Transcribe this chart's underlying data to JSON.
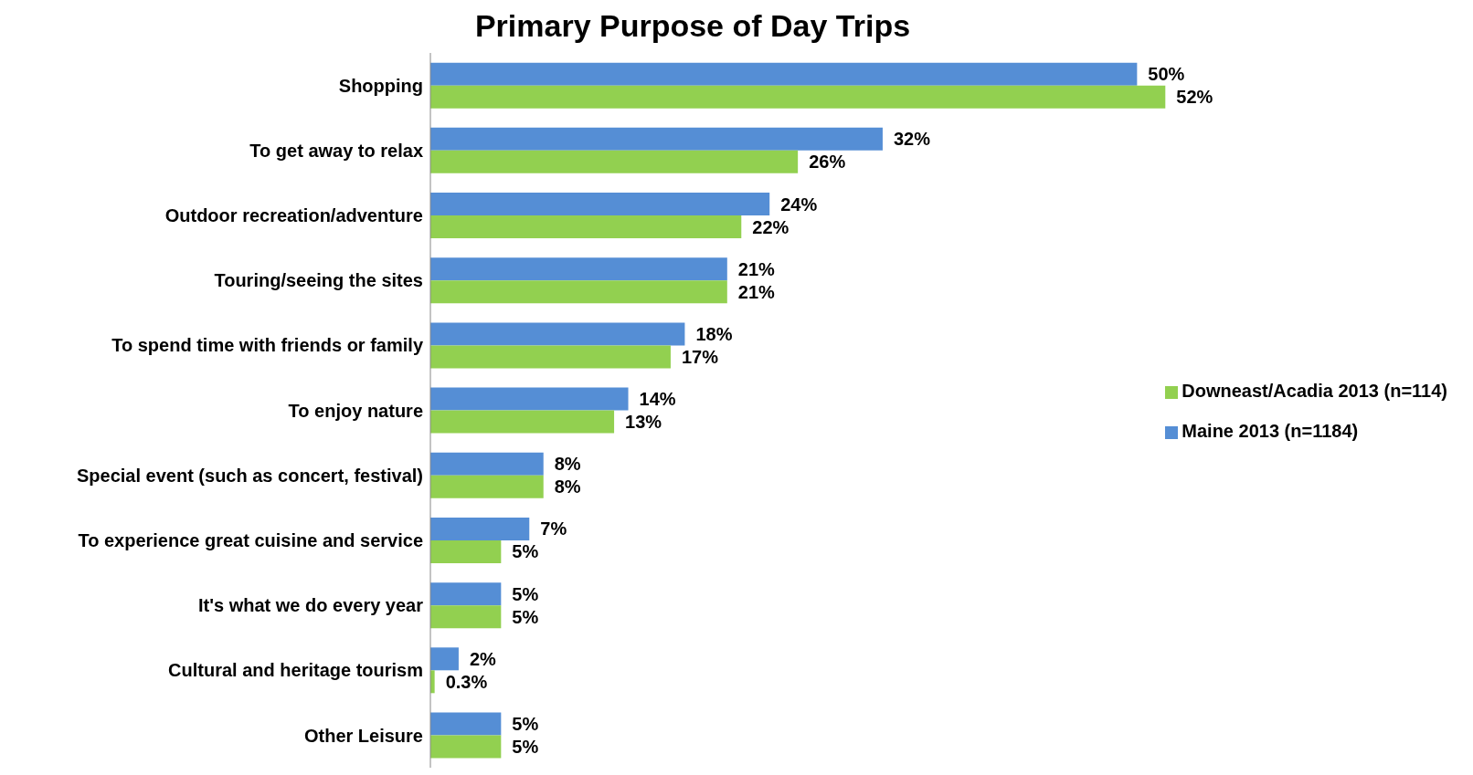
{
  "chart_data": {
    "type": "bar",
    "orientation": "horizontal",
    "title": "Primary Purpose of Day Trips",
    "categories": [
      "Shopping",
      "To get away to relax",
      "Outdoor recreation/adventure",
      "Touring/seeing the sites",
      "To spend time with friends or family",
      "To enjoy nature",
      "Special event (such as concert, festival)",
      "To experience great cuisine and service",
      "It's what we do every year",
      "Cultural and heritage tourism",
      "Other Leisure"
    ],
    "series": [
      {
        "name": "Maine 2013 (n=1184)",
        "color": "#558ed5",
        "values": [
          50,
          32,
          24,
          21,
          18,
          14,
          8,
          7,
          5,
          2,
          5
        ],
        "value_labels": [
          "50%",
          "32%",
          "24%",
          "21%",
          "18%",
          "14%",
          "8%",
          "7%",
          "5%",
          "2%",
          "5%"
        ]
      },
      {
        "name": "Downeast/Acadia 2013 (n=114)",
        "color": "#92d050",
        "values": [
          52,
          26,
          22,
          21,
          17,
          13,
          8,
          5,
          5,
          0.3,
          5
        ],
        "value_labels": [
          "52%",
          "26%",
          "22%",
          "21%",
          "17%",
          "13%",
          "8%",
          "5%",
          "5%",
          "0.3%",
          "5%"
        ]
      }
    ],
    "legend": "right"
  }
}
